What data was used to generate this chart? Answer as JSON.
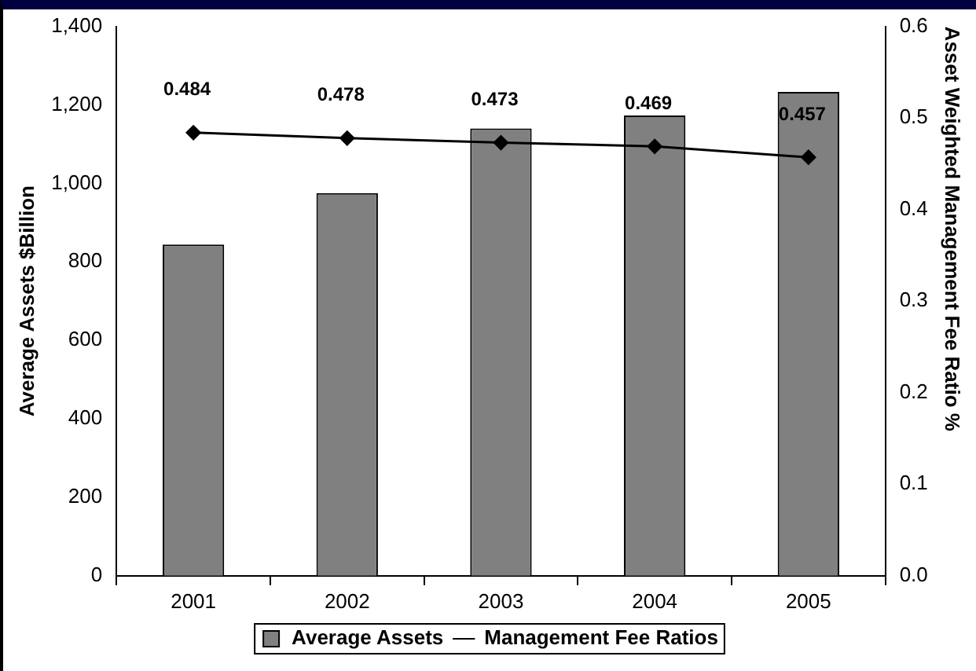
{
  "chart_data": {
    "type": "bar",
    "categories": [
      "2001",
      "2002",
      "2003",
      "2004",
      "2005"
    ],
    "series": [
      {
        "name": "Average Assets",
        "color": "#808080",
        "values": [
          844,
          975,
          1140,
          1173,
          1233
        ]
      },
      {
        "name": "Management Fee Ratios",
        "type": "line",
        "axis": "y2",
        "color": "#000000",
        "values": [
          0.484,
          0.478,
          0.473,
          0.469,
          0.457
        ],
        "value_labels": [
          "0.484",
          "0.478",
          "0.473",
          "0.469",
          "0.457"
        ],
        "marker": "diamond"
      }
    ],
    "ylabel": "Average Assets $Billion",
    "y2label": "Asset Weighted Management Fee Ratio %",
    "ylim": [
      0,
      1400
    ],
    "yticks": [
      0,
      200,
      400,
      600,
      800,
      {
        "value": 1000,
        "label": "1,000"
      },
      {
        "value": 1200,
        "label": "1,200"
      },
      {
        "value": 1400,
        "label": "1,400"
      }
    ],
    "y2lim": [
      0,
      0.6
    ],
    "y2ticks": [
      {
        "value": 0,
        "label": "0.0"
      },
      0.1,
      0.2,
      0.3,
      0.4,
      0.5,
      0.6
    ],
    "grid": false,
    "legend": "bottom"
  }
}
